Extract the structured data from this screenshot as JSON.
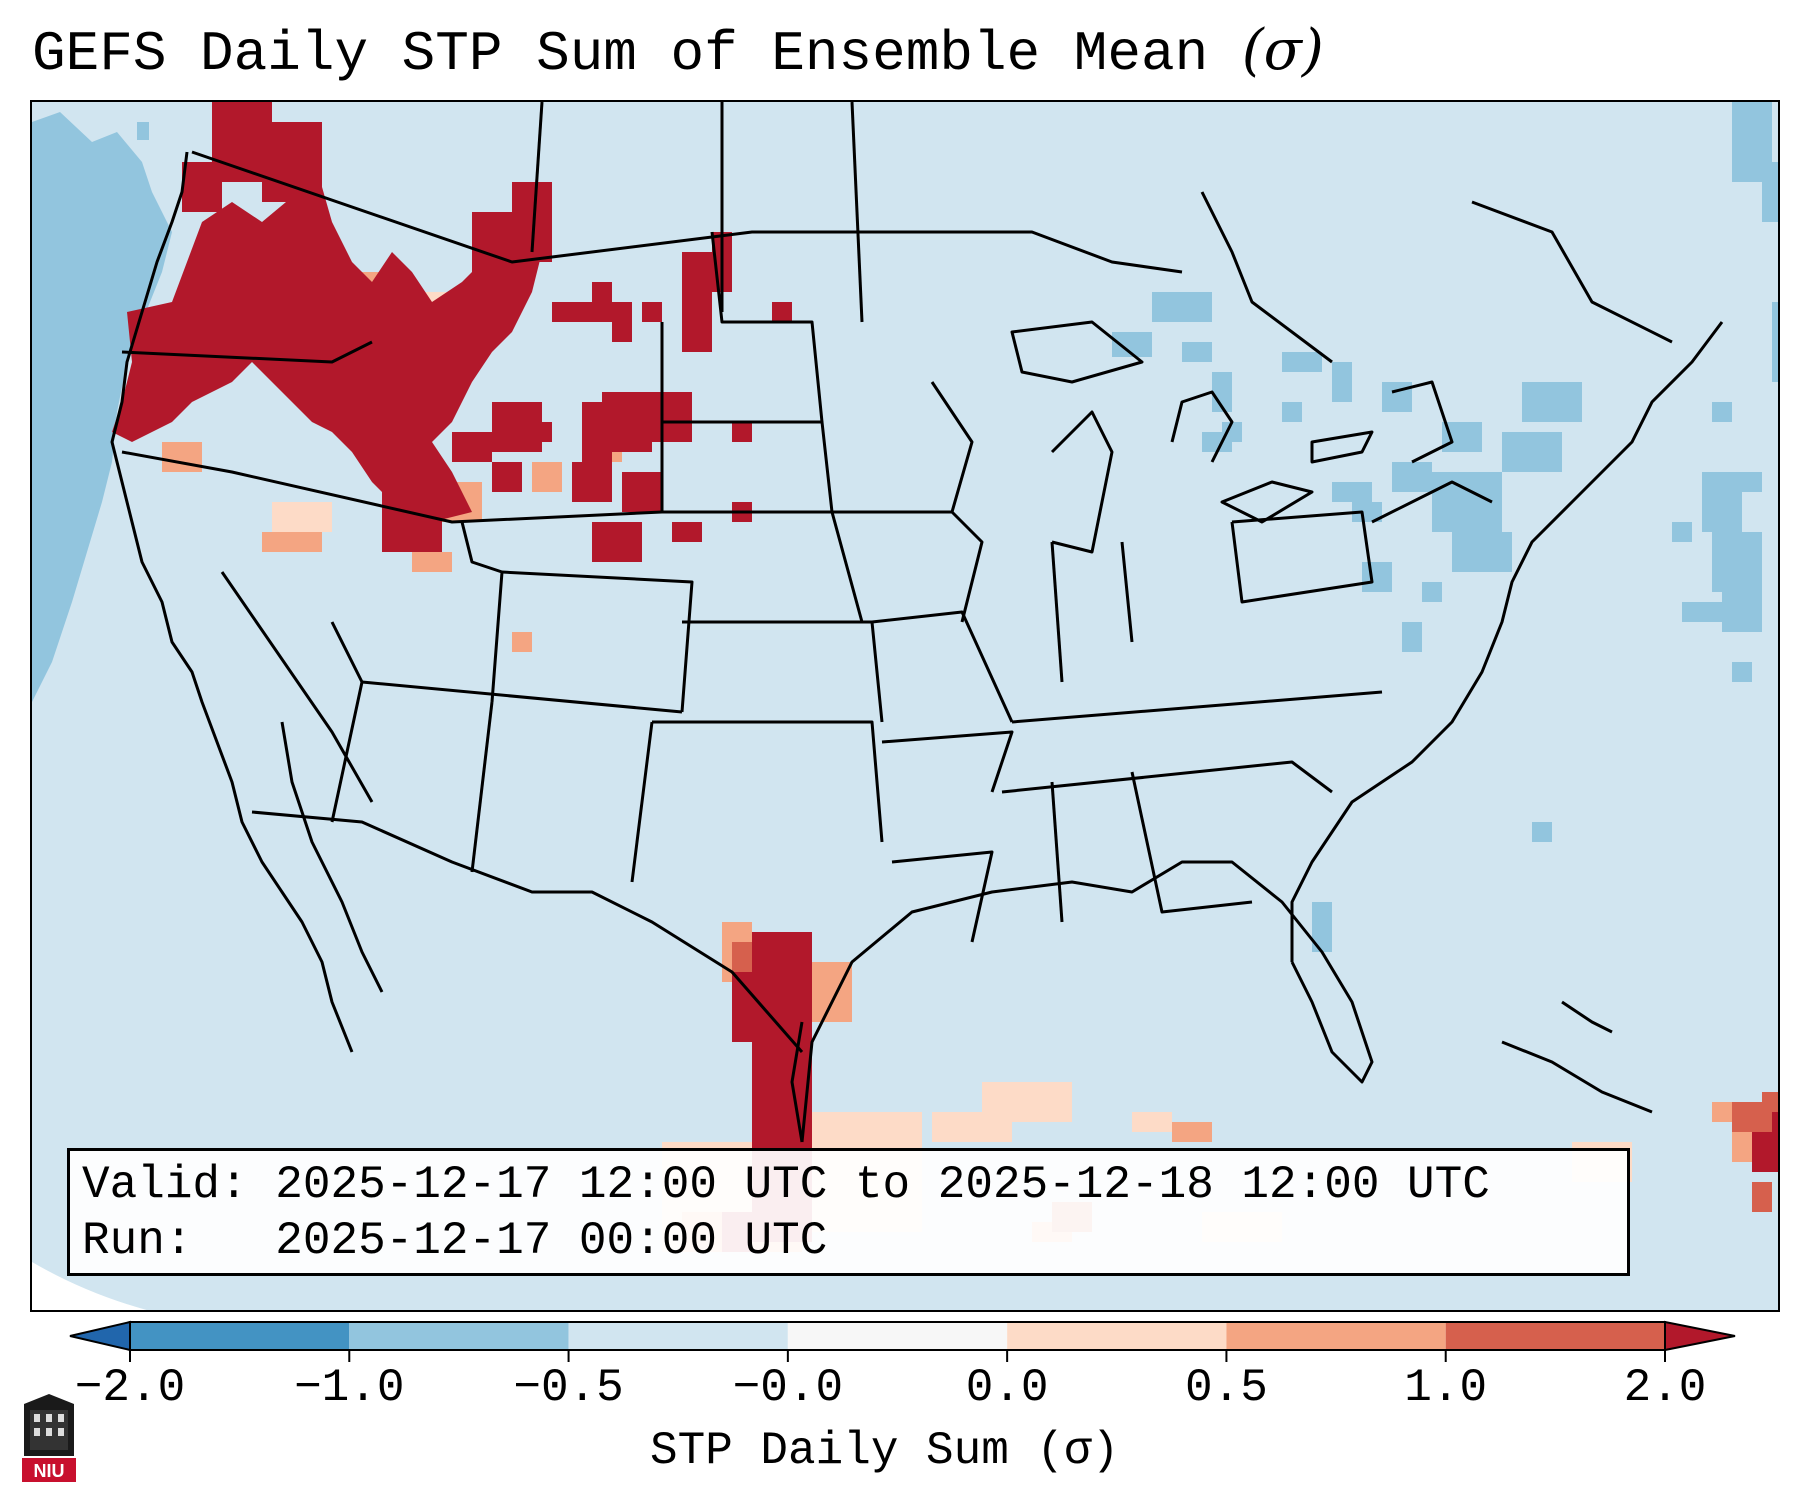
{
  "title": "GEFS Daily STP Sum of Ensemble Mean",
  "title_unit": "(σ)",
  "info": {
    "valid_label": "Valid:",
    "valid_value": "2025-12-17 12:00 UTC to 2025-12-18 12:00 UTC",
    "run_label": "Run:",
    "run_value": "2025-12-17 00:00 UTC"
  },
  "colorbar": {
    "ticks": [
      "−2.0",
      "−1.0",
      "−0.5",
      "−0.0",
      "0.0",
      "0.5",
      "1.0",
      "2.0"
    ],
    "label": "STP Daily Sum (σ)",
    "colors": [
      "#2166ac",
      "#4393c3",
      "#92c5de",
      "#d1e5f0",
      "#fddbc7",
      "#f4a582",
      "#d6604d",
      "#b2182b"
    ],
    "over_color": "#b2182b",
    "under_color": "#2166ac"
  },
  "logo": {
    "text": "NIU",
    "icon": "niu-logo-icon"
  },
  "map_colors": {
    "ocean_base": "#d1e5f0",
    "neg_light": "#92c5de",
    "pos_light": "#fddbc7",
    "pos_mid": "#f4a582",
    "pos_high": "#d6604d",
    "pos_max": "#b2182b",
    "near_zero": "#f7f7f7"
  }
}
